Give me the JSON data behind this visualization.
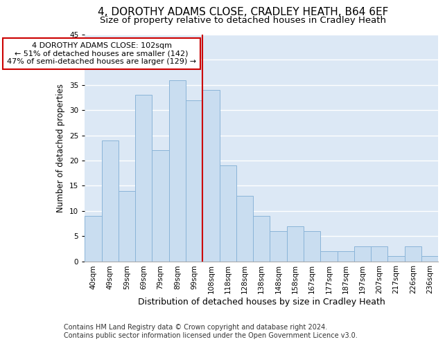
{
  "title1": "4, DOROTHY ADAMS CLOSE, CRADLEY HEATH, B64 6EF",
  "title2": "Size of property relative to detached houses in Cradley Heath",
  "xlabel": "Distribution of detached houses by size in Cradley Heath",
  "ylabel": "Number of detached properties",
  "categories": [
    "40sqm",
    "49sqm",
    "59sqm",
    "69sqm",
    "79sqm",
    "89sqm",
    "99sqm",
    "108sqm",
    "118sqm",
    "128sqm",
    "138sqm",
    "148sqm",
    "158sqm",
    "167sqm",
    "177sqm",
    "187sqm",
    "197sqm",
    "207sqm",
    "217sqm",
    "226sqm",
    "236sqm"
  ],
  "values": [
    9,
    24,
    14,
    33,
    22,
    36,
    32,
    34,
    19,
    13,
    9,
    6,
    7,
    6,
    2,
    2,
    3,
    3,
    1,
    3,
    1
  ],
  "bar_color": "#c9ddf0",
  "bar_edge_color": "#8ab4d8",
  "vline_color": "#cc0000",
  "annotation_box_edge": "#cc0000",
  "annotation_box_face": "#ffffff",
  "annotation_line1": "4 DOROTHY ADAMS CLOSE: 102sqm",
  "annotation_line2": "← 51% of detached houses are smaller (142)",
  "annotation_line3": "47% of semi-detached houses are larger (129) →",
  "footer": "Contains HM Land Registry data © Crown copyright and database right 2024.\nContains public sector information licensed under the Open Government Licence v3.0.",
  "ylim": [
    0,
    45
  ],
  "plot_bg_color": "#dce8f5",
  "fig_bg_color": "#ffffff",
  "grid_color": "#ffffff",
  "title1_fontsize": 11,
  "title2_fontsize": 9.5,
  "tick_fontsize": 7.5,
  "ylabel_fontsize": 8.5,
  "xlabel_fontsize": 9,
  "annotation_fontsize": 8,
  "footer_fontsize": 7,
  "vline_bin_index": 6
}
